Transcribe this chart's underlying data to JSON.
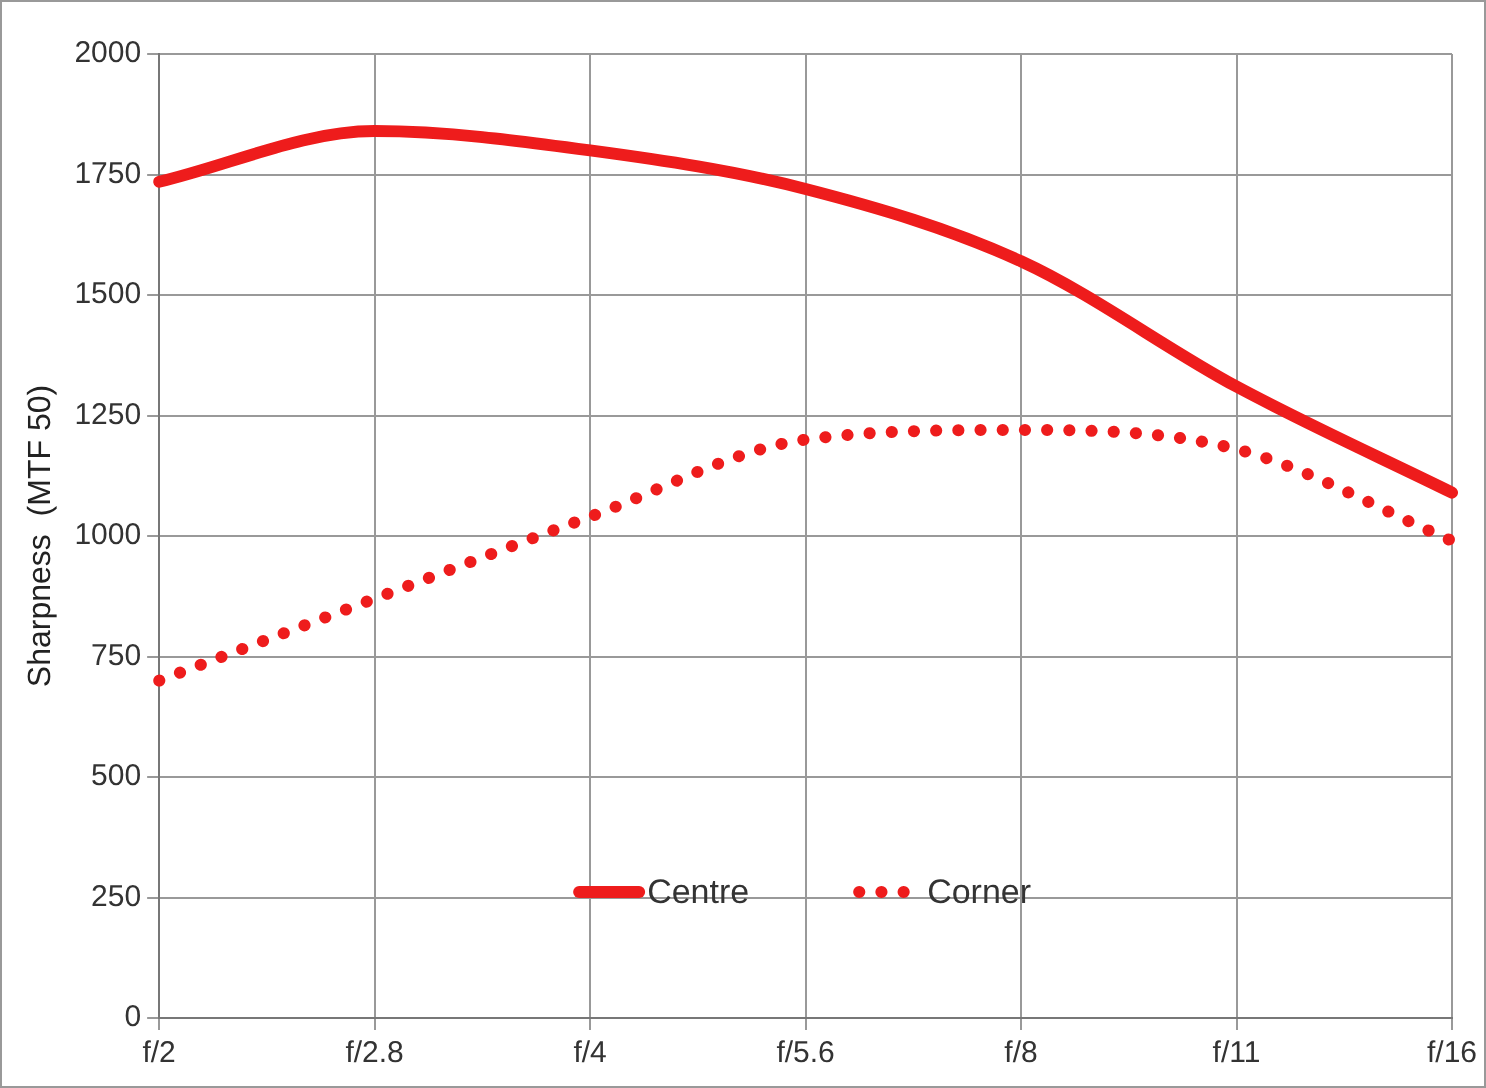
{
  "chart_data": {
    "type": "line",
    "ylabel": "Sharpness  (MTF 50)",
    "categories": [
      "f/2",
      "f/2.8",
      "f/4",
      "f/5.6",
      "f/8",
      "f/11",
      "f/16"
    ],
    "series": [
      {
        "name": "Centre",
        "color": "#ee1c1c",
        "line_style": "solid",
        "values": [
          1735,
          1840,
          1800,
          1720,
          1570,
          1310,
          1090
        ]
      },
      {
        "name": "Corner",
        "color": "#ee1c1c",
        "line_style": "dotted",
        "values": [
          700,
          870,
          1040,
          1200,
          1220,
          1180,
          990
        ]
      }
    ],
    "ylim": [
      0,
      2000
    ],
    "yticks": [
      0,
      250,
      500,
      750,
      1000,
      1250,
      1500,
      1750,
      2000
    ],
    "grid": true,
    "legend": "bottom",
    "marker": "none"
  }
}
